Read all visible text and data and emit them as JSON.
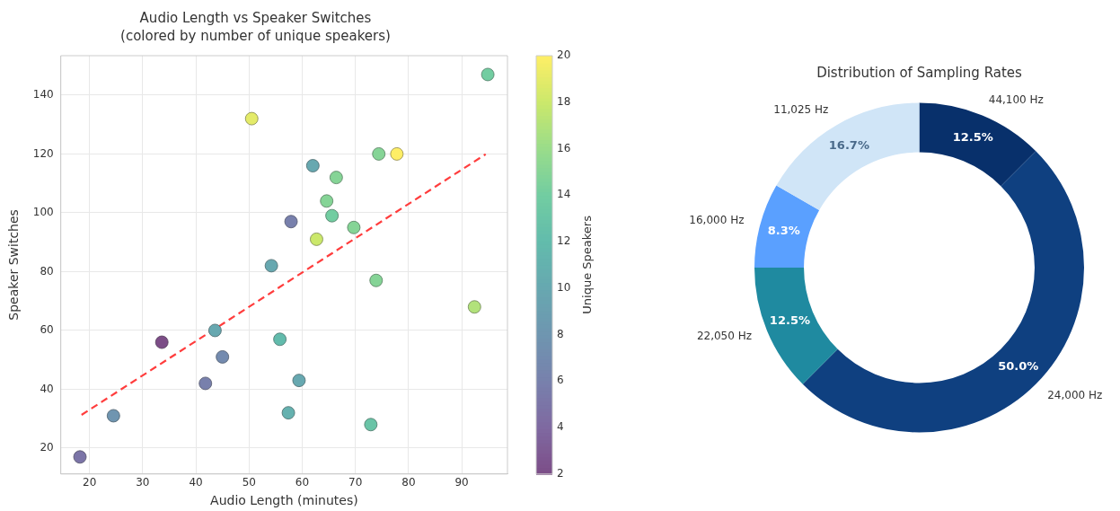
{
  "chart_data": [
    {
      "type": "scatter",
      "title": "Audio Length vs Speaker Switches",
      "subtitle": "(colored by number of unique speakers)",
      "xlabel": "Audio Length (minutes)",
      "ylabel": "Speaker Switches",
      "clabel": "Unique Speakers",
      "clim": [
        2,
        20
      ],
      "cticks": [
        2,
        4,
        6,
        8,
        10,
        12,
        14,
        16,
        18,
        20
      ],
      "xlim": [
        14.6,
        98.6
      ],
      "ylim": [
        11.2,
        153.4
      ],
      "xticks": [
        20,
        30,
        40,
        50,
        60,
        70,
        80,
        90
      ],
      "yticks": [
        20,
        40,
        60,
        80,
        100,
        120,
        140
      ],
      "grid": true,
      "legend": false,
      "marker": "circle",
      "series": [
        {
          "type": "scatter",
          "x": [
            18.2,
            24.5,
            33.6,
            43.6,
            45,
            41.8,
            50.5,
            54.2,
            57.9,
            55.8,
            57.4,
            59.4,
            62,
            62.7,
            64.6,
            65.6,
            66.4,
            69.7,
            74.4,
            77.8,
            73.9,
            72.9,
            92.4,
            94.9
          ],
          "values": [
            17,
            31,
            56,
            60,
            51,
            42,
            132,
            82,
            97,
            57,
            32,
            43,
            116,
            91,
            104,
            99,
            112,
            95,
            120,
            120,
            77,
            28,
            68,
            147
          ],
          "cvalues": [
            5,
            8,
            2,
            10,
            7,
            6,
            19,
            10,
            6,
            12,
            11,
            10,
            10,
            18,
            15,
            14,
            15,
            15,
            15,
            20,
            15,
            13,
            17,
            14
          ],
          "colors": [
            "#7b74a6",
            "#6f95b0",
            "#7c4d87",
            "#67a7b0",
            "#738bae",
            "#7880ac",
            "#e4eb69",
            "#67a7b0",
            "#7880ac",
            "#62bbac",
            "#65b1ae",
            "#67a7b0",
            "#67a7b0",
            "#cbe86b",
            "#85d496",
            "#72cda1",
            "#85d496",
            "#85d496",
            "#85d496",
            "#feee66",
            "#85d496",
            "#6ac4a7",
            "#b2e27b",
            "#72cda1"
          ]
        },
        {
          "type": "line",
          "x": [
            18.5,
            94.5
          ],
          "values": [
            31.3,
            119.9
          ],
          "color": "#ff3d3d",
          "line_style": "dashed",
          "marker": "none"
        }
      ]
    },
    {
      "type": "donut",
      "title": "Distribution of Sampling Rates",
      "categories": [
        "44,100 Hz",
        "24,000 Hz",
        "22,050 Hz",
        "16,000 Hz",
        "11,025 Hz"
      ],
      "values": [
        12.5,
        50,
        12.5,
        8.3,
        16.7
      ],
      "colors": [
        "#08306b",
        "#0f4080",
        "#1f8aa0",
        "#5aa0ff",
        "#d0e5f7"
      ],
      "value_labels": [
        "12.5%",
        "50.0%",
        "12.5%",
        "8.3%",
        "16.7%"
      ],
      "legend": false
    }
  ]
}
